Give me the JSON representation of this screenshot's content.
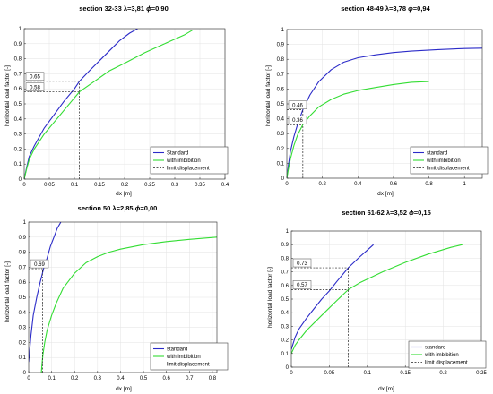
{
  "colors": {
    "blue": "#2b2bc8",
    "green": "#33dd33",
    "black": "#222222",
    "grid": "#e3e3e3"
  },
  "panels": {
    "p1": {
      "title_prefix": "section 32-33 ",
      "lambda_value": "=3,81 ",
      "phi_value": "=0,90",
      "xlabel": "dx [m]",
      "ylabel": "horizontal load factor [-]",
      "legend": [
        "Standard",
        "with imbibition",
        "limit displacement"
      ],
      "annotations": [
        "0.65",
        "0.58"
      ]
    },
    "p2": {
      "title_prefix": "section 48-49 ",
      "lambda_value": "=3,78 ",
      "phi_value": "=0,94",
      "xlabel": "dx [m]",
      "ylabel": "horizontal load factor [-]",
      "legend": [
        "standard",
        "with imbibition",
        "limit displacement"
      ],
      "annotations": [
        "0.46",
        "0.36"
      ]
    },
    "p3": {
      "title_prefix": "section 50 ",
      "lambda_value": "=2,85 ",
      "phi_value": "=0,00",
      "xlabel": "dx [m]",
      "ylabel": "horizontal load factor [-]",
      "legend": [
        "standard",
        "with imbibition",
        "limit displacement"
      ],
      "annotations": [
        "0.69"
      ]
    },
    "p4": {
      "title_prefix": "section 61-62 ",
      "lambda_value": "=3,52 ",
      "phi_value": "=0,15",
      "xlabel": "dx [m]",
      "ylabel": "horizontal load factor [-]",
      "legend": [
        "standard",
        "with imbibition",
        "limit displacement"
      ],
      "annotations": [
        "0.73",
        "0.57"
      ]
    }
  },
  "chart_data": [
    {
      "type": "line",
      "title": "section 32-33 λ=3,81 ϕ=0,90",
      "xlabel": "dx [m]",
      "ylabel": "horizontal load factor [-]",
      "xlim": [
        0,
        0.4
      ],
      "ylim": [
        0,
        1
      ],
      "xticks": [
        0,
        0.05,
        0.1,
        0.15,
        0.2,
        0.25,
        0.3,
        0.35,
        0.4
      ],
      "yticks": [
        0,
        0.1,
        0.2,
        0.3,
        0.4,
        0.5,
        0.6,
        0.7,
        0.8,
        0.9,
        1
      ],
      "grid": true,
      "legend_position": "bottom-right",
      "series": [
        {
          "name": "Standard",
          "color": "blue",
          "x": [
            0,
            0.005,
            0.01,
            0.02,
            0.04,
            0.06,
            0.08,
            0.1,
            0.11,
            0.13,
            0.16,
            0.19,
            0.21,
            0.226
          ],
          "y": [
            0,
            0.08,
            0.15,
            0.22,
            0.34,
            0.43,
            0.52,
            0.6,
            0.65,
            0.72,
            0.82,
            0.92,
            0.97,
            1.0
          ]
        },
        {
          "name": "with imbibition",
          "color": "green",
          "x": [
            0,
            0.005,
            0.01,
            0.02,
            0.04,
            0.06,
            0.08,
            0.11,
            0.14,
            0.17,
            0.2,
            0.24,
            0.28,
            0.32,
            0.335
          ],
          "y": [
            0,
            0.07,
            0.13,
            0.2,
            0.3,
            0.38,
            0.46,
            0.58,
            0.65,
            0.72,
            0.77,
            0.84,
            0.9,
            0.96,
            0.99
          ]
        }
      ],
      "limit_displacement": {
        "x": 0.11,
        "y_values": [
          0.65,
          0.58
        ]
      }
    },
    {
      "type": "line",
      "title": "section 48-49 λ=3,78 ϕ=0,94",
      "xlabel": "dx [m]",
      "ylabel": "horizontal load factor [-]",
      "xlim": [
        0,
        1.1
      ],
      "ylim": [
        0,
        1
      ],
      "xticks": [
        0,
        0.2,
        0.4,
        0.6,
        0.8,
        1
      ],
      "yticks": [
        0,
        0.1,
        0.2,
        0.3,
        0.4,
        0.5,
        0.6,
        0.7,
        0.8,
        0.9,
        1
      ],
      "grid": true,
      "legend_position": "bottom-right",
      "series": [
        {
          "name": "standard",
          "color": "blue",
          "x": [
            0,
            0.01,
            0.02,
            0.04,
            0.06,
            0.09,
            0.13,
            0.18,
            0.25,
            0.32,
            0.4,
            0.5,
            0.6,
            0.7,
            0.85,
            1.0,
            1.1
          ],
          "y": [
            0,
            0.1,
            0.18,
            0.28,
            0.36,
            0.46,
            0.56,
            0.65,
            0.73,
            0.78,
            0.81,
            0.83,
            0.845,
            0.855,
            0.865,
            0.872,
            0.875
          ]
        },
        {
          "name": "with imbibition",
          "color": "green",
          "x": [
            0,
            0.01,
            0.02,
            0.04,
            0.06,
            0.09,
            0.13,
            0.18,
            0.25,
            0.32,
            0.4,
            0.5,
            0.6,
            0.7,
            0.8
          ],
          "y": [
            0,
            0.07,
            0.13,
            0.22,
            0.29,
            0.36,
            0.42,
            0.48,
            0.53,
            0.565,
            0.59,
            0.61,
            0.63,
            0.645,
            0.65
          ]
        }
      ],
      "limit_displacement": {
        "x": 0.09,
        "y_values": [
          0.46,
          0.36
        ]
      }
    },
    {
      "type": "line",
      "title": "section 50 λ=2,85 ϕ=0,00",
      "xlabel": "dx [m]",
      "ylabel": "horizontal load factor [-]",
      "xlim": [
        0,
        0.82
      ],
      "ylim": [
        0,
        1
      ],
      "xticks": [
        0,
        0.1,
        0.2,
        0.3,
        0.4,
        0.5,
        0.6,
        0.7,
        0.8
      ],
      "yticks": [
        0,
        0.1,
        0.2,
        0.3,
        0.4,
        0.5,
        0.6,
        0.7,
        0.8,
        0.9,
        1
      ],
      "grid": true,
      "legend_position": "bottom-right",
      "series": [
        {
          "name": "standard",
          "color": "blue",
          "x": [
            0.0,
            0.01,
            0.02,
            0.035,
            0.05,
            0.065,
            0.08,
            0.095,
            0.11,
            0.125,
            0.14
          ],
          "y": [
            0.07,
            0.25,
            0.38,
            0.5,
            0.6,
            0.69,
            0.76,
            0.84,
            0.9,
            0.96,
            1.0
          ]
        },
        {
          "name": "with imbibition",
          "color": "green",
          "x": [
            0.055,
            0.058,
            0.062,
            0.07,
            0.08,
            0.1,
            0.12,
            0.15,
            0.2,
            0.25,
            0.3,
            0.35,
            0.4,
            0.5,
            0.6,
            0.7,
            0.82
          ],
          "y": [
            0.0,
            0.06,
            0.12,
            0.2,
            0.28,
            0.38,
            0.46,
            0.56,
            0.66,
            0.73,
            0.77,
            0.8,
            0.82,
            0.85,
            0.87,
            0.885,
            0.9
          ]
        }
      ],
      "limit_displacement": {
        "x": 0.06,
        "y_values": [
          0.69
        ]
      }
    },
    {
      "type": "line",
      "title": "section 61-62 λ=3,52 ϕ=0,15",
      "xlabel": "dx [m]",
      "ylabel": "horizontal load factor [-]",
      "xlim": [
        0,
        0.25
      ],
      "ylim": [
        0,
        1
      ],
      "xticks": [
        0,
        0.05,
        0.1,
        0.15,
        0.2,
        0.25
      ],
      "yticks": [
        0,
        0.1,
        0.2,
        0.3,
        0.4,
        0.5,
        0.6,
        0.7,
        0.8,
        0.9,
        1
      ],
      "grid": true,
      "legend_position": "bottom-right",
      "series": [
        {
          "name": "standard",
          "color": "blue",
          "x": [
            0,
            0.005,
            0.01,
            0.02,
            0.03,
            0.04,
            0.05,
            0.06,
            0.075,
            0.09,
            0.1,
            0.108
          ],
          "y": [
            0.13,
            0.22,
            0.28,
            0.36,
            0.43,
            0.5,
            0.56,
            0.63,
            0.73,
            0.81,
            0.86,
            0.9
          ]
        },
        {
          "name": "with imbibition",
          "color": "green",
          "x": [
            0,
            0.005,
            0.01,
            0.02,
            0.04,
            0.06,
            0.075,
            0.09,
            0.12,
            0.15,
            0.18,
            0.21,
            0.225
          ],
          "y": [
            0.1,
            0.16,
            0.2,
            0.27,
            0.38,
            0.49,
            0.57,
            0.62,
            0.7,
            0.77,
            0.83,
            0.88,
            0.9
          ]
        }
      ],
      "limit_displacement": {
        "x": 0.075,
        "y_values": [
          0.73,
          0.57
        ]
      }
    }
  ]
}
